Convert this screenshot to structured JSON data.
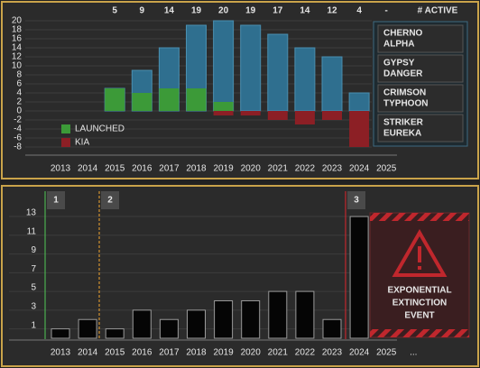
{
  "chart_data": [
    {
      "type": "bar",
      "categories": [
        "2013",
        "2014",
        "2015",
        "2016",
        "2017",
        "2018",
        "2019",
        "2020",
        "2021",
        "2022",
        "2023",
        "2024",
        "2025"
      ],
      "active_header": "# ACTIVE",
      "series": [
        {
          "name": "ACTIVE",
          "color": "#2f6f8f",
          "values": [
            null,
            null,
            5,
            9,
            14,
            19,
            20,
            19,
            17,
            14,
            12,
            4,
            null
          ],
          "value_labels": [
            null,
            null,
            "5",
            "9",
            "14",
            "19",
            "20",
            "19",
            "17",
            "14",
            "12",
            "4",
            "-"
          ]
        },
        {
          "name": "LAUNCHED",
          "color": "#3c9a38",
          "values": [
            null,
            null,
            5,
            4,
            5,
            5,
            2,
            null,
            null,
            null,
            null,
            null,
            null
          ]
        },
        {
          "name": "KIA",
          "color": "#8c1f25",
          "values": [
            null,
            null,
            null,
            null,
            null,
            null,
            -1,
            -1,
            -2,
            -3,
            -2,
            -8,
            null
          ]
        }
      ],
      "ylim": [
        -9,
        21.5
      ],
      "yticks": [
        -8,
        -6,
        -4,
        -2,
        0,
        2,
        4,
        6,
        8,
        10,
        12,
        14,
        16,
        18,
        20
      ],
      "grid": true,
      "jaegers": [
        [
          "CHERNO",
          "ALPHA"
        ],
        [
          "GYPSY",
          "DANGER"
        ],
        [
          "CRIMSON",
          "TYPHOON"
        ],
        [
          "STRIKER",
          "EUREKA"
        ]
      ]
    },
    {
      "type": "bar",
      "categories": [
        "2013",
        "2014",
        "2015",
        "2016",
        "2017",
        "2018",
        "2019",
        "2020",
        "2021",
        "2022",
        "2023",
        "2024",
        "2025",
        "..."
      ],
      "values": [
        1,
        2,
        1,
        3,
        2,
        3,
        4,
        4,
        5,
        5,
        2,
        13,
        null,
        null
      ],
      "color": "#050505",
      "ylim": [
        0,
        13.5
      ],
      "yticks": [
        1,
        3,
        5,
        7,
        9,
        11,
        13
      ],
      "grid": true,
      "annotations": [
        "1",
        "2",
        "3"
      ],
      "event_label": [
        "EXPONENTIAL",
        "EXTINCTION",
        "EVENT"
      ]
    }
  ]
}
